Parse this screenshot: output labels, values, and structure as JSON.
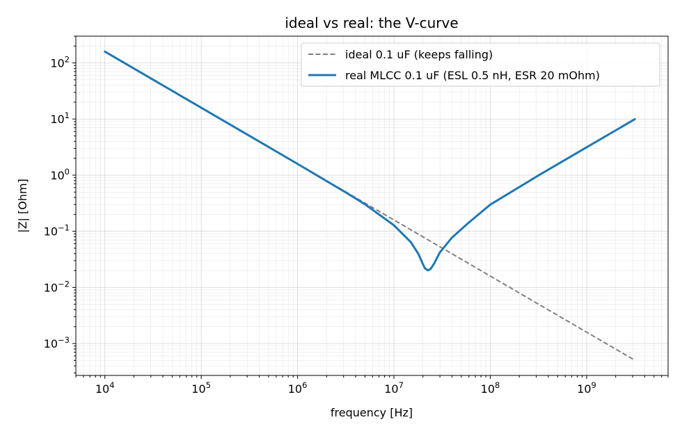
{
  "chart_data": {
    "type": "line",
    "title": "ideal vs real: the V-curve",
    "xlabel": "frequency [Hz]",
    "ylabel": "|Z| [Ohm]",
    "xscale": "log",
    "yscale": "log",
    "xlim": [
      5000,
      7000000000
    ],
    "ylim": [
      0.00027,
      300
    ],
    "grid": "on (major and minor)",
    "legend_position": "top-right",
    "x_ticks": [
      {
        "value": 10000,
        "base": "10",
        "exp": "4"
      },
      {
        "value": 100000,
        "base": "10",
        "exp": "5"
      },
      {
        "value": 1000000,
        "base": "10",
        "exp": "6"
      },
      {
        "value": 10000000,
        "base": "10",
        "exp": "7"
      },
      {
        "value": 100000000,
        "base": "10",
        "exp": "8"
      },
      {
        "value": 1000000000,
        "base": "10",
        "exp": "9"
      }
    ],
    "y_ticks": [
      {
        "value": 0.001,
        "base": "10",
        "exp": "−3"
      },
      {
        "value": 0.01,
        "base": "10",
        "exp": "−2"
      },
      {
        "value": 0.1,
        "base": "10",
        "exp": "−1"
      },
      {
        "value": 1,
        "base": "10",
        "exp": "0"
      },
      {
        "value": 10,
        "base": "10",
        "exp": "1"
      },
      {
        "value": 100,
        "base": "10",
        "exp": "2"
      }
    ],
    "series": [
      {
        "name": "ideal 0.1 uF (keeps falling)",
        "color": "#808080",
        "style": "dashed",
        "x": [
          10000,
          31623,
          100000,
          316228,
          1000000,
          3162278,
          10000000,
          31622777,
          100000000,
          316227766,
          1000000000,
          3162277660
        ],
        "y": [
          159.15,
          50.33,
          15.915,
          5.033,
          1.5915,
          0.5033,
          0.15915,
          0.05033,
          0.015915,
          0.005033,
          0.0015915,
          0.0005033
        ]
      },
      {
        "name": "real MLCC 0.1 uF (ESL 0.5 nH, ESR 20 mOhm)",
        "color": "#1f77b4",
        "style": "solid",
        "x": [
          10000,
          31623,
          100000,
          316228,
          1000000,
          3162278,
          5000000,
          10000000,
          15000000,
          18000000,
          20000000,
          21000000,
          22500000,
          24000000,
          26000000,
          30000000,
          40000000,
          60000000,
          100000000,
          316227766,
          1000000000,
          3162277660
        ],
        "y": [
          159.15,
          50.33,
          15.91,
          5.03,
          1.588,
          0.493,
          0.303,
          0.128,
          0.0638,
          0.0391,
          0.0258,
          0.0219,
          0.0201,
          0.0213,
          0.0262,
          0.0421,
          0.0772,
          0.1436,
          0.2985,
          0.99,
          3.14,
          9.93
        ]
      }
    ]
  }
}
